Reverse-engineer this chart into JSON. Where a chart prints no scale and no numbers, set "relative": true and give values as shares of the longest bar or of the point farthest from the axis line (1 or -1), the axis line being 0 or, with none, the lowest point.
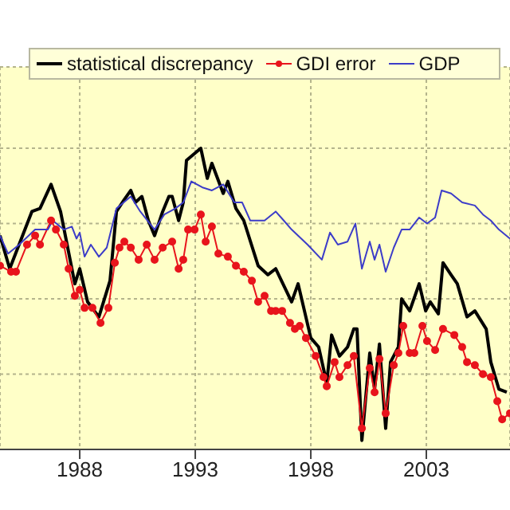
{
  "chart_data": {
    "type": "line",
    "relative": true,
    "xlim": [
      1984.55,
      2006.62
    ],
    "xticks": [
      1988,
      1993,
      1998,
      2003
    ],
    "grid": true,
    "legend": "top",
    "line_style": "solid",
    "series": [
      {
        "name": "statistical discrepancy",
        "color": "#000000",
        "marker": "none",
        "x": [
          1984.55,
          1984.97,
          1985.93,
          1986.28,
          1986.76,
          1987.17,
          1987.79,
          1988,
          1988.34,
          1988.83,
          1989.31,
          1989.59,
          1989.93,
          1990.21,
          1990.41,
          1990.69,
          1990.97,
          1991.24,
          1991.59,
          1991.86,
          1992,
          1992.28,
          1992.48,
          1992.62,
          1993.24,
          1993.52,
          1993.72,
          1994.21,
          1994.41,
          1994.76,
          1995.1,
          1995.72,
          1996.14,
          1996.48,
          1997.17,
          1997.45,
          1998,
          1998.34,
          1998.69,
          1998.9,
          1999.24,
          1999.59,
          1999.86,
          2000,
          2000.21,
          2000.55,
          2000.76,
          2000.97,
          2001.24,
          2001.45,
          2001.79,
          2001.93,
          2002.28,
          2002.69,
          2002.97,
          2003.17,
          2003.52,
          2003.72,
          2004.07,
          2004.34,
          2004.76,
          2005.1,
          2005.59,
          2005.79,
          2006.14,
          2006.48
        ],
        "values": [
          0.71,
          0.6,
          0.79,
          0.8,
          0.88,
          0.79,
          0.55,
          0.6,
          0.49,
          0.44,
          0.56,
          0.79,
          0.83,
          0.86,
          0.82,
          0.84,
          0.76,
          0.71,
          0.79,
          0.84,
          0.84,
          0.76,
          0.82,
          0.96,
          1.0,
          0.9,
          0.95,
          0.85,
          0.89,
          0.8,
          0.76,
          0.61,
          0.58,
          0.6,
          0.49,
          0.55,
          0.37,
          0.34,
          0.22,
          0.38,
          0.31,
          0.34,
          0.4,
          0.4,
          0.03,
          0.32,
          0.2,
          0.35,
          0.07,
          0.29,
          0.34,
          0.5,
          0.46,
          0.55,
          0.46,
          0.49,
          0.45,
          0.62,
          0.58,
          0.55,
          0.44,
          0.46,
          0.4,
          0.29,
          0.2,
          0.19
        ]
      },
      {
        "name": "GDI error",
        "color": "#e8141c",
        "marker": "circle",
        "x": [
          1984.55,
          1985.03,
          1985.24,
          1985.72,
          1986.07,
          1986.28,
          1986.76,
          1986.97,
          1987.31,
          1987.52,
          1987.79,
          1988,
          1988.21,
          1988.55,
          1988.9,
          1989.24,
          1989.52,
          1989.72,
          1989.93,
          1990.21,
          1990.55,
          1990.9,
          1991.24,
          1991.59,
          1992,
          1992.28,
          1992.48,
          1992.69,
          1992.97,
          1993.24,
          1993.45,
          1993.72,
          1994,
          1994.41,
          1994.76,
          1995.1,
          1995.45,
          1995.72,
          1996,
          1996.28,
          1996.48,
          1996.76,
          1997.1,
          1997.31,
          1997.52,
          1997.79,
          1998.21,
          1998.55,
          1998.69,
          1999.03,
          1999.24,
          1999.59,
          1999.86,
          2000.21,
          2000.55,
          2000.76,
          2000.97,
          2001.24,
          2001.59,
          2001.79,
          2002,
          2002.28,
          2002.48,
          2002.83,
          2003.03,
          2003.38,
          2003.72,
          2004.21,
          2004.55,
          2004.76,
          2005.1,
          2005.45,
          2005.79,
          2006.07,
          2006.28,
          2006.62
        ],
        "values": [
          0.61,
          0.59,
          0.59,
          0.68,
          0.71,
          0.68,
          0.76,
          0.73,
          0.68,
          0.6,
          0.51,
          0.53,
          0.47,
          0.47,
          0.42,
          0.47,
          0.62,
          0.67,
          0.69,
          0.67,
          0.63,
          0.68,
          0.63,
          0.67,
          0.69,
          0.6,
          0.63,
          0.73,
          0.73,
          0.78,
          0.69,
          0.74,
          0.65,
          0.64,
          0.61,
          0.59,
          0.56,
          0.49,
          0.51,
          0.46,
          0.46,
          0.46,
          0.42,
          0.4,
          0.41,
          0.37,
          0.31,
          0.24,
          0.21,
          0.29,
          0.24,
          0.28,
          0.31,
          0.07,
          0.27,
          0.19,
          0.3,
          0.12,
          0.28,
          0.32,
          0.41,
          0.32,
          0.32,
          0.41,
          0.36,
          0.33,
          0.4,
          0.38,
          0.34,
          0.29,
          0.28,
          0.25,
          0.24,
          0.16,
          0.1,
          0.12
        ]
      },
      {
        "name": "GDP",
        "color": "#3c3cc8",
        "marker": "none",
        "x": [
          1984.55,
          1984.9,
          1985.38,
          1986.07,
          1986.62,
          1986.83,
          1987.31,
          1987.66,
          1987.86,
          1988,
          1988.21,
          1988.48,
          1988.83,
          1989.17,
          1989.59,
          1990.21,
          1990.62,
          1991.24,
          1991.66,
          1992.14,
          1992.48,
          1992.83,
          1993.31,
          1993.72,
          1994.21,
          1994.69,
          1995.03,
          1995.38,
          1996,
          1996.48,
          1996.83,
          1997.17,
          1997.86,
          1998.48,
          1998.83,
          1999.17,
          1999.59,
          1999.93,
          2000.21,
          2000.55,
          2000.76,
          2000.97,
          2001.24,
          2001.59,
          2001.93,
          2002.28,
          2002.69,
          2003.03,
          2003.38,
          2003.66,
          2004.07,
          2004.55,
          2005.1,
          2005.45,
          2005.79,
          2006.14,
          2006.62
        ],
        "values": [
          0.71,
          0.65,
          0.68,
          0.73,
          0.73,
          0.76,
          0.73,
          0.74,
          0.7,
          0.72,
          0.64,
          0.68,
          0.64,
          0.67,
          0.8,
          0.84,
          0.79,
          0.73,
          0.78,
          0.8,
          0.82,
          0.89,
          0.87,
          0.86,
          0.88,
          0.82,
          0.82,
          0.76,
          0.76,
          0.79,
          0.76,
          0.73,
          0.68,
          0.63,
          0.72,
          0.68,
          0.69,
          0.75,
          0.6,
          0.69,
          0.63,
          0.68,
          0.59,
          0.67,
          0.73,
          0.73,
          0.77,
          0.75,
          0.77,
          0.86,
          0.85,
          0.82,
          0.81,
          0.78,
          0.76,
          0.73,
          0.7
        ]
      }
    ]
  }
}
